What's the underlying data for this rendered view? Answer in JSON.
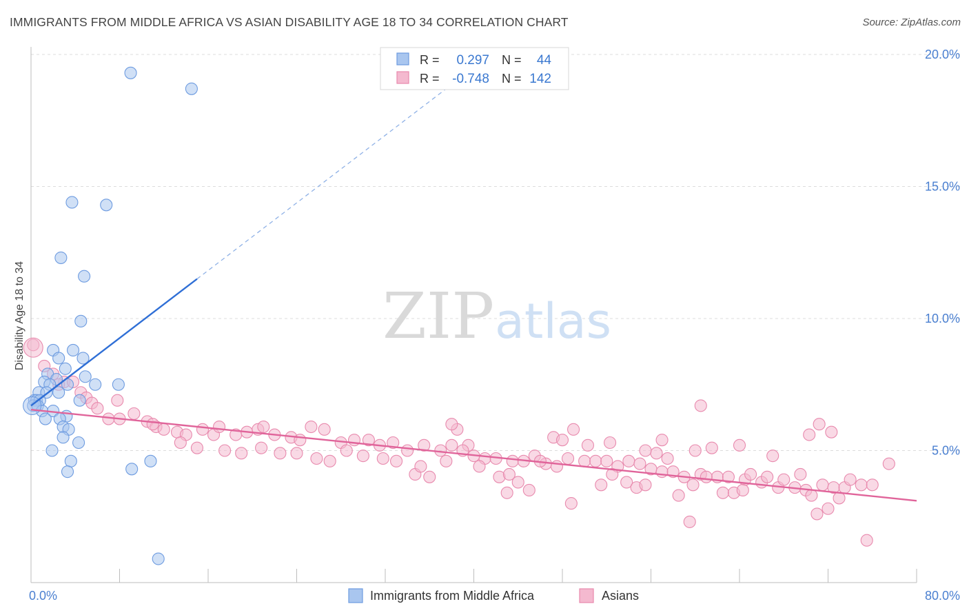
{
  "title": "IMMIGRANTS FROM MIDDLE AFRICA VS ASIAN DISABILITY AGE 18 TO 34 CORRELATION CHART",
  "source": "Source: ZipAtlas.com",
  "watermark": {
    "part1": "ZIP",
    "part2": "atlas"
  },
  "colors": {
    "blue": "#2f6fd6",
    "blue_fill": "#a9c6ef",
    "pink": "#e0649a",
    "pink_fill": "#f4b9cf",
    "tick_text": "#4a7fd0"
  },
  "chart_data": {
    "type": "scatter",
    "title": "IMMIGRANTS FROM MIDDLE AFRICA VS ASIAN DISABILITY AGE 18 TO 34 CORRELATION CHART",
    "xlabel": "",
    "ylabel": "Disability Age 18 to 34",
    "xlim": [
      0,
      80
    ],
    "ylim": [
      0,
      20.5
    ],
    "x_tick_labels": [
      "0.0%",
      "80.0%"
    ],
    "y_ticks": [
      5,
      10,
      15,
      20
    ],
    "y_tick_labels": [
      "5.0%",
      "10.0%",
      "15.0%",
      "20.0%"
    ],
    "grid": "horizontal dashed",
    "legend": {
      "placement": "top-center",
      "rows": [
        {
          "r_label": "R =",
          "r_value": "0.297",
          "n_label": "N =",
          "n_value": "44"
        },
        {
          "r_label": "R =",
          "r_value": "-0.748",
          "n_label": "N =",
          "n_value": "142"
        }
      ]
    },
    "series": [
      {
        "name": "Immigrants from Middle Africa",
        "color": "blue",
        "trend": {
          "x0": 0.0,
          "y0": 6.7,
          "x1": 15.0,
          "y1": 11.5,
          "dash_to_x": 40.0,
          "dash_to_y": 19.5
        },
        "points": [
          [
            9.0,
            19.3
          ],
          [
            14.5,
            18.7
          ],
          [
            3.7,
            14.4
          ],
          [
            6.8,
            14.3
          ],
          [
            2.7,
            12.3
          ],
          [
            4.8,
            11.6
          ],
          [
            4.5,
            9.9
          ],
          [
            2.0,
            8.8
          ],
          [
            3.8,
            8.8
          ],
          [
            2.5,
            8.5
          ],
          [
            4.7,
            8.5
          ],
          [
            3.1,
            8.1
          ],
          [
            1.5,
            7.9
          ],
          [
            4.9,
            7.8
          ],
          [
            2.3,
            7.7
          ],
          [
            1.2,
            7.6
          ],
          [
            1.7,
            7.5
          ],
          [
            3.3,
            7.5
          ],
          [
            5.8,
            7.5
          ],
          [
            7.9,
            7.5
          ],
          [
            0.7,
            7.2
          ],
          [
            1.4,
            7.2
          ],
          [
            2.5,
            7.2
          ],
          [
            0.3,
            6.9
          ],
          [
            0.5,
            6.9
          ],
          [
            0.8,
            6.9
          ],
          [
            4.4,
            6.9
          ],
          [
            0.2,
            6.7
          ],
          [
            0.6,
            6.7
          ],
          [
            1.0,
            6.5
          ],
          [
            2.0,
            6.5
          ],
          [
            3.2,
            6.3
          ],
          [
            1.3,
            6.2
          ],
          [
            2.6,
            6.2
          ],
          [
            2.9,
            5.9
          ],
          [
            3.4,
            5.8
          ],
          [
            2.9,
            5.5
          ],
          [
            4.3,
            5.3
          ],
          [
            1.9,
            5.0
          ],
          [
            3.6,
            4.6
          ],
          [
            10.8,
            4.6
          ],
          [
            9.1,
            4.3
          ],
          [
            3.3,
            4.2
          ],
          [
            11.5,
            0.9
          ]
        ]
      },
      {
        "name": "Asians",
        "color": "pink",
        "trend": {
          "x0": 0.0,
          "y0": 6.55,
          "x1": 80.0,
          "y1": 3.1
        },
        "points": [
          [
            0.2,
            9.0
          ],
          [
            1.2,
            8.2
          ],
          [
            2.0,
            7.9
          ],
          [
            3.0,
            7.6
          ],
          [
            2.5,
            7.5
          ],
          [
            3.8,
            7.6
          ],
          [
            4.5,
            7.2
          ],
          [
            5.0,
            7.0
          ],
          [
            5.5,
            6.8
          ],
          [
            7.8,
            6.9
          ],
          [
            6.0,
            6.6
          ],
          [
            9.3,
            6.4
          ],
          [
            7.0,
            6.2
          ],
          [
            8.0,
            6.2
          ],
          [
            10.5,
            6.1
          ],
          [
            11.3,
            5.9
          ],
          [
            12.0,
            5.8
          ],
          [
            13.2,
            5.7
          ],
          [
            14.0,
            5.6
          ],
          [
            15.5,
            5.8
          ],
          [
            16.5,
            5.6
          ],
          [
            17.0,
            5.9
          ],
          [
            18.5,
            5.6
          ],
          [
            19.5,
            5.7
          ],
          [
            20.5,
            5.8
          ],
          [
            21.0,
            5.9
          ],
          [
            22.0,
            5.6
          ],
          [
            23.5,
            5.5
          ],
          [
            24.3,
            5.4
          ],
          [
            25.3,
            5.9
          ],
          [
            26.5,
            5.8
          ],
          [
            28.0,
            5.3
          ],
          [
            29.2,
            5.4
          ],
          [
            30.5,
            5.4
          ],
          [
            31.5,
            5.2
          ],
          [
            32.7,
            5.3
          ],
          [
            34.0,
            5.0
          ],
          [
            35.5,
            5.2
          ],
          [
            37.0,
            5.0
          ],
          [
            38.0,
            5.2
          ],
          [
            39.5,
            5.2
          ],
          [
            41.0,
            4.7
          ],
          [
            42.0,
            4.7
          ],
          [
            43.5,
            4.6
          ],
          [
            44.5,
            4.6
          ],
          [
            45.5,
            4.8
          ],
          [
            46.5,
            4.5
          ],
          [
            47.5,
            4.4
          ],
          [
            48.5,
            4.7
          ],
          [
            50.0,
            4.6
          ],
          [
            51.0,
            4.6
          ],
          [
            52.0,
            4.6
          ],
          [
            53.0,
            4.4
          ],
          [
            54.0,
            4.6
          ],
          [
            55.0,
            4.5
          ],
          [
            56.0,
            4.3
          ],
          [
            57.0,
            4.2
          ],
          [
            58.0,
            4.2
          ],
          [
            59.0,
            4.0
          ],
          [
            60.5,
            4.1
          ],
          [
            62.0,
            4.0
          ],
          [
            63.0,
            4.0
          ],
          [
            64.5,
            3.9
          ],
          [
            66.0,
            3.8
          ],
          [
            67.5,
            3.6
          ],
          [
            69.0,
            3.6
          ],
          [
            70.0,
            3.5
          ],
          [
            71.5,
            3.7
          ],
          [
            72.5,
            3.6
          ],
          [
            73.5,
            3.6
          ],
          [
            75.0,
            3.7
          ],
          [
            77.5,
            4.5
          ],
          [
            11.0,
            6.0
          ],
          [
            13.5,
            5.3
          ],
          [
            15.0,
            5.1
          ],
          [
            17.5,
            5.0
          ],
          [
            19.0,
            4.9
          ],
          [
            20.8,
            5.1
          ],
          [
            22.5,
            4.9
          ],
          [
            24.0,
            4.9
          ],
          [
            25.8,
            4.7
          ],
          [
            27.0,
            4.6
          ],
          [
            28.5,
            5.0
          ],
          [
            30.0,
            4.8
          ],
          [
            31.8,
            4.7
          ],
          [
            33.0,
            4.6
          ],
          [
            34.7,
            4.1
          ],
          [
            35.2,
            4.4
          ],
          [
            36.0,
            4.0
          ],
          [
            37.5,
            4.6
          ],
          [
            38.5,
            5.8
          ],
          [
            39.0,
            5.0
          ],
          [
            40.0,
            4.8
          ],
          [
            40.5,
            4.4
          ],
          [
            42.3,
            4.0
          ],
          [
            43.2,
            4.1
          ],
          [
            44.0,
            3.8
          ],
          [
            45.0,
            3.5
          ],
          [
            46.0,
            4.6
          ],
          [
            47.2,
            5.5
          ],
          [
            48.0,
            5.4
          ],
          [
            49.0,
            5.8
          ],
          [
            50.3,
            5.2
          ],
          [
            51.5,
            3.7
          ],
          [
            52.5,
            4.1
          ],
          [
            53.8,
            3.8
          ],
          [
            54.7,
            3.6
          ],
          [
            55.5,
            3.7
          ],
          [
            56.5,
            4.9
          ],
          [
            57.5,
            4.7
          ],
          [
            58.5,
            3.3
          ],
          [
            59.8,
            3.7
          ],
          [
            61.0,
            4.0
          ],
          [
            62.5,
            3.4
          ],
          [
            63.5,
            3.4
          ],
          [
            64.3,
            3.5
          ],
          [
            65.0,
            4.1
          ],
          [
            66.5,
            4.0
          ],
          [
            68.0,
            3.9
          ],
          [
            69.5,
            4.1
          ],
          [
            70.5,
            3.3
          ],
          [
            71.0,
            2.6
          ],
          [
            72.0,
            2.8
          ],
          [
            73.0,
            3.2
          ],
          [
            74.0,
            3.9
          ],
          [
            76.0,
            3.7
          ],
          [
            60.0,
            5.0
          ],
          [
            61.5,
            5.1
          ],
          [
            64.0,
            5.2
          ],
          [
            67.0,
            4.8
          ],
          [
            70.3,
            5.6
          ],
          [
            71.2,
            6.0
          ],
          [
            72.3,
            5.7
          ],
          [
            57.0,
            5.4
          ],
          [
            55.5,
            5.0
          ],
          [
            52.3,
            5.3
          ],
          [
            48.8,
            3.0
          ],
          [
            43.0,
            3.4
          ],
          [
            59.5,
            2.3
          ],
          [
            75.5,
            1.6
          ],
          [
            60.5,
            6.7
          ],
          [
            38.0,
            6.0
          ]
        ]
      }
    ]
  },
  "bottom_legend": [
    {
      "label": "Immigrants from Middle Africa",
      "color": "blue"
    },
    {
      "label": "Asians",
      "color": "pink"
    }
  ]
}
